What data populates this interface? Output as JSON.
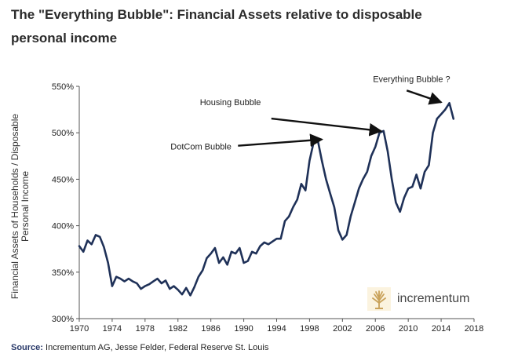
{
  "title_line1": "The \"Everything Bubble\": Financial Assets relative to disposable",
  "title_line2": "personal income",
  "source_label": "Source:",
  "source_text": "Incrementum AG, Jesse Felder, Federal Reserve St. Louis",
  "logo_text": "incrementum",
  "colors": {
    "line": "#1f3158",
    "axis": "#555555",
    "arrow": "#111111",
    "source": "#2a3a6a"
  },
  "chart_data": {
    "type": "line",
    "title": "The \"Everything Bubble\": Financial Assets relative to disposable personal income",
    "xlabel": "",
    "ylabel_line1": "Financial Assets of Households / Disposable",
    "ylabel_line2": "Personal Income",
    "xlim": [
      1970,
      2018
    ],
    "ylim": [
      300,
      550
    ],
    "xticks": [
      1970,
      1974,
      1978,
      1982,
      1986,
      1990,
      1994,
      1998,
      2002,
      2006,
      2010,
      2014,
      2018
    ],
    "yticks": [
      300,
      350,
      400,
      450,
      500,
      550
    ],
    "ytick_labels": [
      "300%",
      "350%",
      "400%",
      "450%",
      "500%",
      "550%"
    ],
    "series": [
      {
        "name": "Financial Assets / Disposable Personal Income",
        "x": [
          1970,
          1970.5,
          1971,
          1971.5,
          1972,
          1972.5,
          1973,
          1973.5,
          1974,
          1974.5,
          1975,
          1975.5,
          1976,
          1976.5,
          1977,
          1977.5,
          1978,
          1978.5,
          1979,
          1979.5,
          1980,
          1980.5,
          1981,
          1981.5,
          1982,
          1982.5,
          1983,
          1983.5,
          1984,
          1984.5,
          1985,
          1985.5,
          1986,
          1986.5,
          1987,
          1987.5,
          1988,
          1988.5,
          1989,
          1989.5,
          1990,
          1990.5,
          1991,
          1991.5,
          1992,
          1992.5,
          1993,
          1993.5,
          1994,
          1994.5,
          1995,
          1995.5,
          1996,
          1996.5,
          1997,
          1997.5,
          1998,
          1998.5,
          1999,
          1999.5,
          2000,
          2000.5,
          2001,
          2001.5,
          2002,
          2002.5,
          2003,
          2003.5,
          2004,
          2004.5,
          2005,
          2005.5,
          2006,
          2006.5,
          2007,
          2007.5,
          2008,
          2008.5,
          2009,
          2009.5,
          2010,
          2010.5,
          2011,
          2011.5,
          2012,
          2012.5,
          2013,
          2013.5,
          2014,
          2014.5,
          2015,
          2015.5
        ],
        "values": [
          378,
          372,
          384,
          380,
          390,
          388,
          377,
          360,
          335,
          345,
          343,
          340,
          343,
          340,
          338,
          332,
          335,
          337,
          340,
          343,
          338,
          341,
          332,
          335,
          331,
          326,
          333,
          325,
          334,
          345,
          352,
          365,
          370,
          376,
          360,
          366,
          358,
          372,
          370,
          376,
          360,
          362,
          372,
          370,
          378,
          382,
          380,
          383,
          386,
          386,
          405,
          410,
          420,
          428,
          445,
          438,
          470,
          490,
          492,
          470,
          450,
          435,
          420,
          395,
          385,
          390,
          410,
          425,
          440,
          450,
          458,
          475,
          485,
          500,
          502,
          480,
          450,
          425,
          415,
          430,
          440,
          442,
          455,
          440,
          458,
          465,
          500,
          515,
          520,
          525,
          532,
          515
        ]
      }
    ],
    "annotations": [
      {
        "text": "DotCom Bubble",
        "x": 1999.8,
        "y": 492
      },
      {
        "text": "Housing Bubble",
        "x": 2007.0,
        "y": 501
      },
      {
        "text": "Everything Bubble ?",
        "x": 2014.3,
        "y": 532
      }
    ]
  }
}
